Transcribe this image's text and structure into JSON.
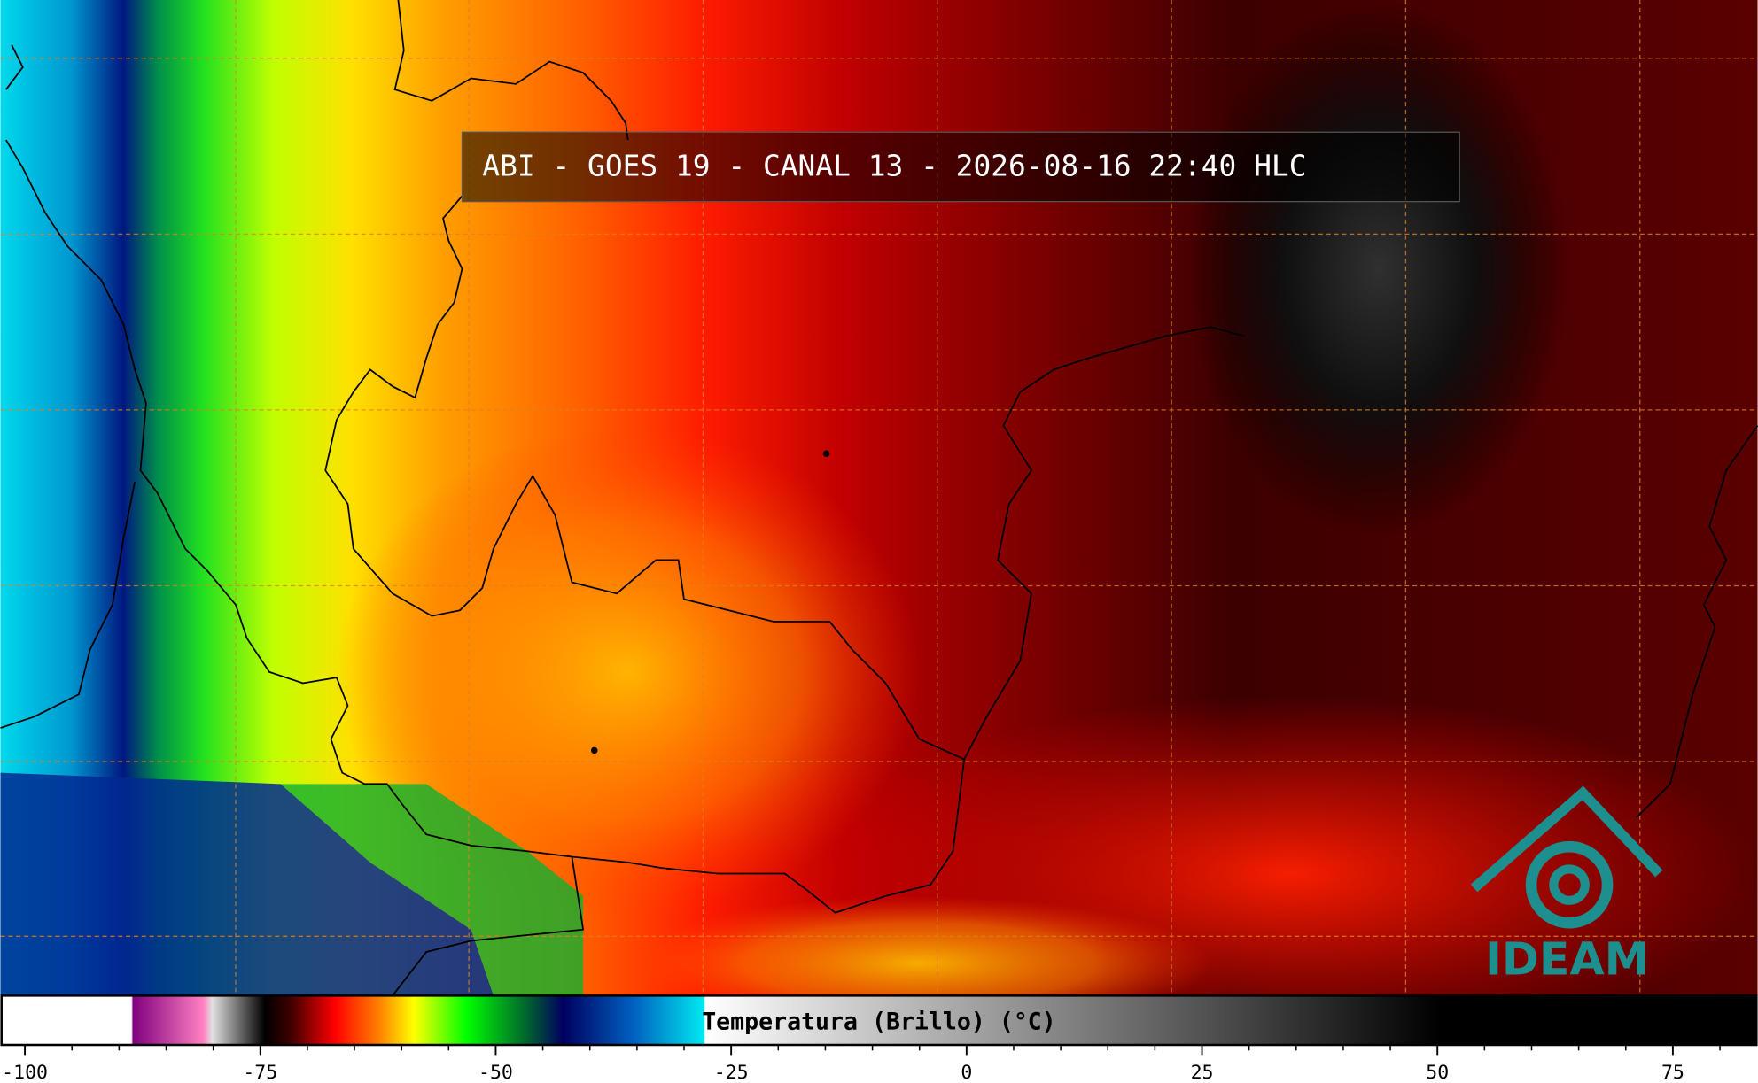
{
  "title": "ABI - GOES 19 - CANAL 13 - 2026-08-16 22:40 HLC",
  "colorbar": {
    "label": "Temperatura (Brillo) (°C)",
    "xlim": [
      -102.6,
      84.0
    ],
    "xticks": [
      -100,
      -75,
      -50,
      -25,
      0,
      25,
      50,
      75
    ],
    "minor_ticks": [
      -95,
      -90,
      -85,
      -80,
      -70,
      -65,
      -60,
      -55,
      -45,
      -40,
      -35,
      -30,
      -20,
      -15,
      -10,
      -5,
      5,
      10,
      15,
      20,
      30,
      35,
      40,
      45,
      55,
      60,
      65,
      70,
      80
    ]
  },
  "logo": {
    "text": "IDEAM"
  }
}
